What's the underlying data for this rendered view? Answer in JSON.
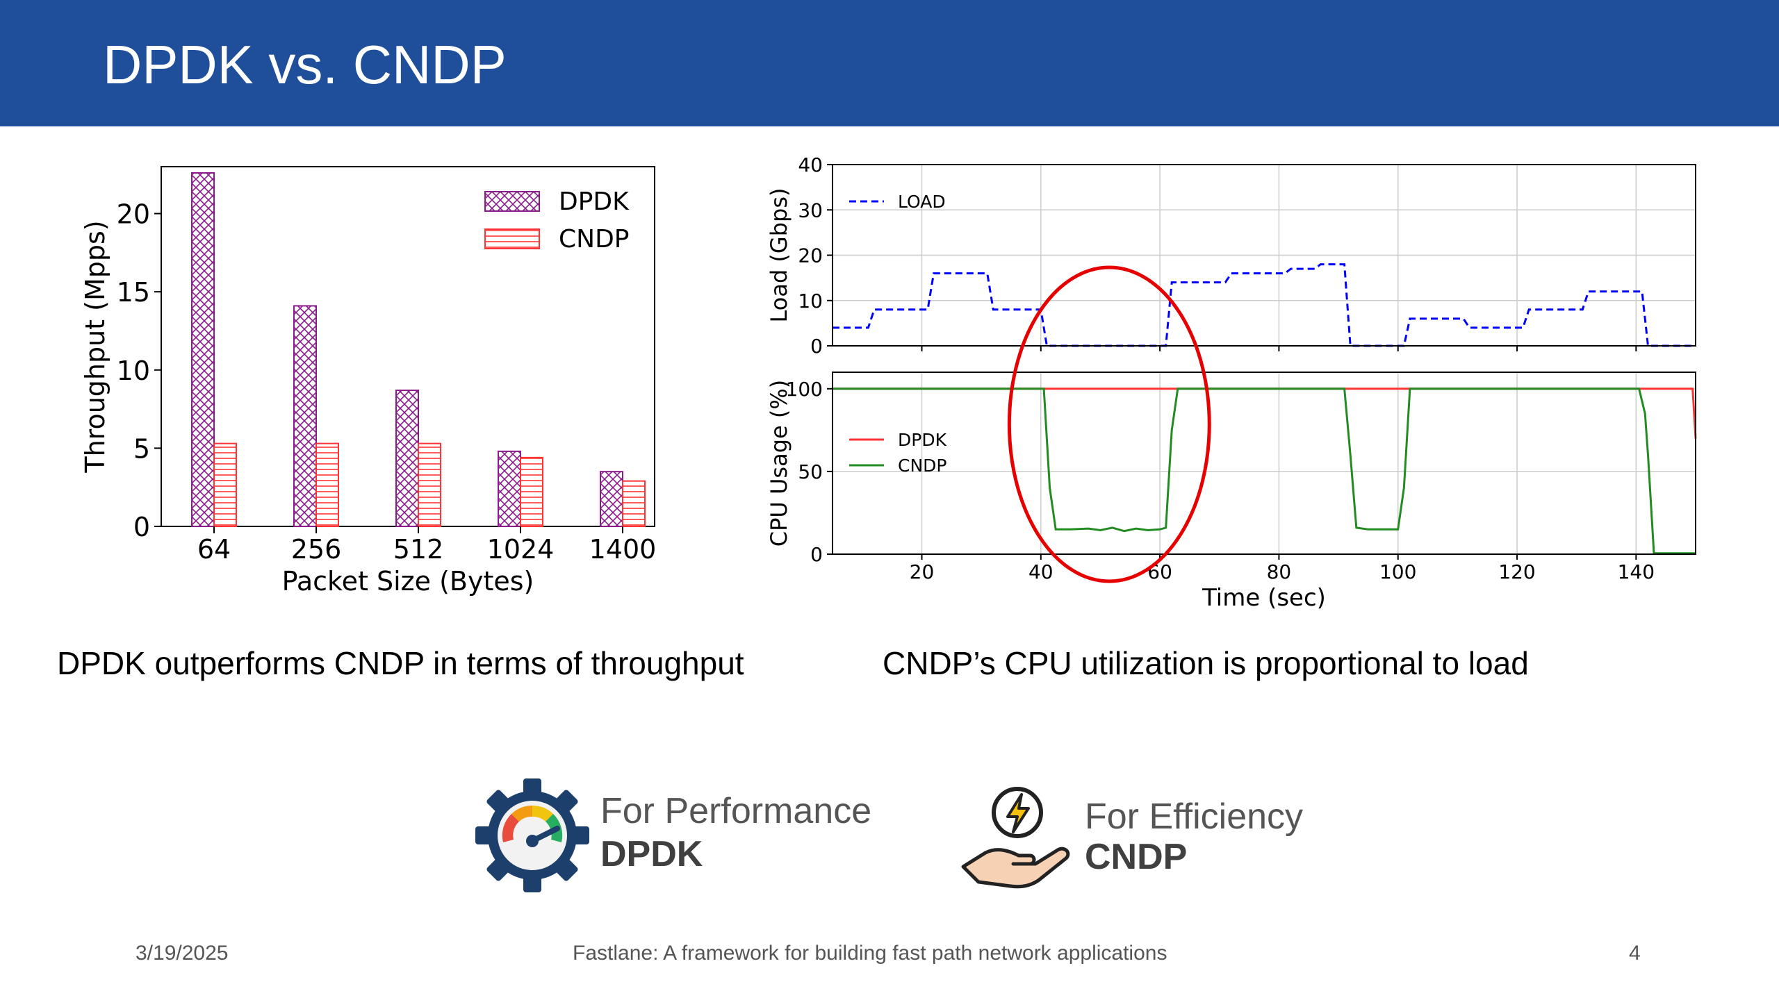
{
  "slide": {
    "title": "DPDK vs. CNDP",
    "caption_left": "DPDK outperforms CNDP in terms of throughput",
    "caption_right": "CNDP’s CPU utilization is proportional to load",
    "footer": {
      "date": "3/19/2025",
      "text": "Fastlane: A framework for building fast path network applications",
      "page": "4"
    },
    "badges": [
      {
        "subtitle": "For Performance",
        "name": "DPDK",
        "icon": "speedometer-gear-icon"
      },
      {
        "subtitle": "For Efficiency",
        "name": "CNDP",
        "icon": "hand-lightning-icon"
      }
    ]
  },
  "chart_data": [
    {
      "type": "bar",
      "xlabel": "Packet Size (Bytes)",
      "ylabel": "Throughput (Mpps)",
      "categories": [
        "64",
        "256",
        "512",
        "1024",
        "1400"
      ],
      "series": [
        {
          "name": "DPDK",
          "values": [
            22.6,
            14.1,
            8.7,
            4.8,
            3.5
          ],
          "color": "#8b1a8b",
          "hatch": "crosshatch"
        },
        {
          "name": "CNDP",
          "values": [
            5.3,
            5.3,
            5.3,
            4.4,
            2.9
          ],
          "color": "#ff3333",
          "hatch": "horizontal"
        }
      ],
      "ylim": [
        0,
        23
      ],
      "yticks": [
        0,
        5,
        10,
        15,
        20
      ],
      "legend": "top-right"
    },
    {
      "type": "line",
      "xlabel": "Time (sec)",
      "xlim": [
        5,
        150
      ],
      "xticks": [
        20,
        40,
        60,
        80,
        100,
        120,
        140
      ],
      "grid": true,
      "panels": [
        {
          "ylabel": "Load (Gbps)",
          "ylim": [
            0,
            40
          ],
          "yticks": [
            0,
            10,
            20,
            30,
            40
          ],
          "legend": "top-left",
          "series": [
            {
              "name": "LOAD",
              "color": "#0000ff",
              "dash": true,
              "x": [
                5,
                11,
                12,
                21,
                22,
                31,
                32,
                40,
                41,
                61,
                62,
                71,
                72,
                81,
                82,
                86,
                87,
                91,
                92,
                101,
                102,
                111,
                112,
                121,
                122,
                131,
                132,
                141,
                142,
                150
              ],
              "y": [
                4,
                4,
                8,
                8,
                16,
                16,
                8,
                8,
                0,
                0,
                14,
                14,
                16,
                16,
                17,
                17,
                18,
                18,
                0,
                0,
                6,
                6,
                4,
                4,
                8,
                8,
                12,
                12,
                0,
                0
              ]
            }
          ]
        },
        {
          "ylabel": "CPU Usage (%)",
          "ylim": [
            0,
            110
          ],
          "yticks": [
            0,
            50,
            100
          ],
          "legend": "center-left",
          "series": [
            {
              "name": "DPDK",
              "color": "#ff3333",
              "dash": false,
              "x": [
                5,
                149.5,
                150
              ],
              "y": [
                100,
                100,
                70
              ]
            },
            {
              "name": "CNDP",
              "color": "#228b22",
              "dash": false,
              "x": [
                5,
                40.5,
                41.5,
                42.5,
                45,
                48,
                50,
                52,
                54,
                56,
                58,
                60,
                61,
                62,
                63,
                91,
                92,
                93,
                95,
                100,
                101,
                102,
                140.5,
                141.5,
                142,
                143,
                146,
                150
              ],
              "y": [
                100,
                100,
                40,
                15,
                15,
                15.5,
                14.5,
                16,
                14,
                15.5,
                14.5,
                15,
                16,
                75,
                100,
                100,
                60,
                16,
                15,
                15,
                40,
                100,
                100,
                85,
                60,
                0.5,
                0.5,
                0.5
              ]
            }
          ]
        }
      ],
      "annotation": "red ellipse around 40–62 sec"
    }
  ]
}
